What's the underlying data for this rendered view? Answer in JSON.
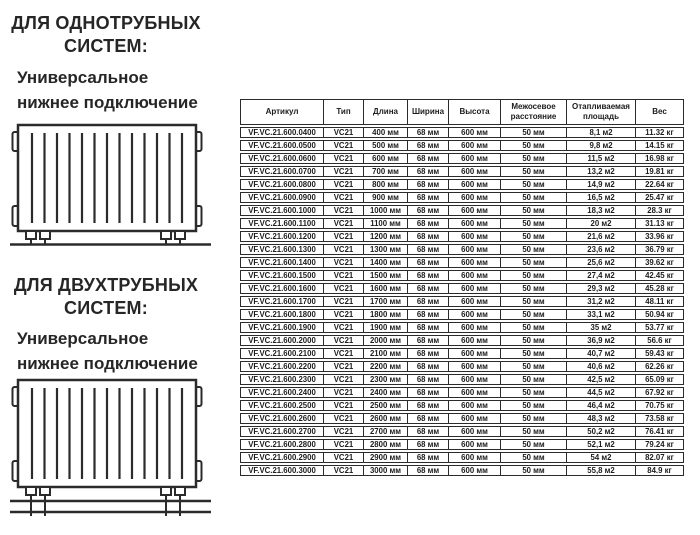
{
  "page": {
    "background": "#ffffff",
    "text_color": "#262626",
    "border_color": "#2b2b2b"
  },
  "left_panel": {
    "single_pipe": {
      "heading": "ДЛЯ ОДНОТРУБНЫХ\nСИСТЕМ:",
      "subheading": "Универсальное\nнижнее подключение",
      "icon": "single-pipe-radiator-diagram"
    },
    "two_pipe": {
      "heading": "ДЛЯ ДВУХТРУБНЫХ\nСИСТЕМ:",
      "subheading": "Универсальное\nнижнее подключение",
      "icon": "two-pipe-radiator-diagram"
    }
  },
  "spec_table": {
    "headers": [
      "Артикул",
      "Тип",
      "Длина",
      "Ширина",
      "Высота",
      "Межосевое расстояние",
      "Отапливаемая площадь",
      "Вес"
    ],
    "rows": [
      [
        "VF.VC.21.600.0400",
        "VC21",
        "400 мм",
        "68 мм",
        "600 мм",
        "50 мм",
        "8,1 м2",
        "11.32 кг"
      ],
      [
        "VF.VC.21.600.0500",
        "VC21",
        "500 мм",
        "68 мм",
        "600 мм",
        "50 мм",
        "9,8 м2",
        "14.15 кг"
      ],
      [
        "VF.VC.21.600.0600",
        "VC21",
        "600 мм",
        "68 мм",
        "600 мм",
        "50 мм",
        "11,5 м2",
        "16.98 кг"
      ],
      [
        "VF.VC.21.600.0700",
        "VC21",
        "700 мм",
        "68 мм",
        "600 мм",
        "50 мм",
        "13,2 м2",
        "19.81 кг"
      ],
      [
        "VF.VC.21.600.0800",
        "VC21",
        "800 мм",
        "68 мм",
        "600 мм",
        "50 мм",
        "14,9 м2",
        "22.64 кг"
      ],
      [
        "VF.VC.21.600.0900",
        "VC21",
        "900 мм",
        "68 мм",
        "600 мм",
        "50 мм",
        "16,5 м2",
        "25.47 кг"
      ],
      [
        "VF.VC.21.600.1000",
        "VC21",
        "1000 мм",
        "68 мм",
        "600 мм",
        "50 мм",
        "18,3 м2",
        "28.3 кг"
      ],
      [
        "VF.VC.21.600.1100",
        "VC21",
        "1100 мм",
        "68 мм",
        "600 мм",
        "50 мм",
        "20 м2",
        "31.13 кг"
      ],
      [
        "VF.VC.21.600.1200",
        "VC21",
        "1200 мм",
        "68 мм",
        "600 мм",
        "50 мм",
        "21,6 м2",
        "33.96 кг"
      ],
      [
        "VF.VC.21.600.1300",
        "VC21",
        "1300 мм",
        "68 мм",
        "600 мм",
        "50 мм",
        "23,6 м2",
        "36.79 кг"
      ],
      [
        "VF.VC.21.600.1400",
        "VC21",
        "1400 мм",
        "68 мм",
        "600 мм",
        "50 мм",
        "25,6 м2",
        "39.62 кг"
      ],
      [
        "VF.VC.21.600.1500",
        "VC21",
        "1500 мм",
        "68 мм",
        "600 мм",
        "50 мм",
        "27,4 м2",
        "42.45 кг"
      ],
      [
        "VF.VC.21.600.1600",
        "VC21",
        "1600 мм",
        "68 мм",
        "600 мм",
        "50 мм",
        "29,3 м2",
        "45.28 кг"
      ],
      [
        "VF.VC.21.600.1700",
        "VC21",
        "1700 мм",
        "68 мм",
        "600 мм",
        "50 мм",
        "31,2 м2",
        "48.11 кг"
      ],
      [
        "VF.VC.21.600.1800",
        "VC21",
        "1800 мм",
        "68 мм",
        "600 мм",
        "50 мм",
        "33,1 м2",
        "50.94 кг"
      ],
      [
        "VF.VC.21.600.1900",
        "VC21",
        "1900 мм",
        "68 мм",
        "600 мм",
        "50 мм",
        "35 м2",
        "53.77 кг"
      ],
      [
        "VF.VC.21.600.2000",
        "VC21",
        "2000 мм",
        "68 мм",
        "600 мм",
        "50 мм",
        "36,9 м2",
        "56.6 кг"
      ],
      [
        "VF.VC.21.600.2100",
        "VC21",
        "2100 мм",
        "68 мм",
        "600 мм",
        "50 мм",
        "40,7 м2",
        "59.43 кг"
      ],
      [
        "VF.VC.21.600.2200",
        "VC21",
        "2200 мм",
        "68 мм",
        "600 мм",
        "50 мм",
        "40,6 м2",
        "62.26 кг"
      ],
      [
        "VF.VC.21.600.2300",
        "VC21",
        "2300 мм",
        "68 мм",
        "600 мм",
        "50 мм",
        "42,5 м2",
        "65.09 кг"
      ],
      [
        "VF.VC.21.600.2400",
        "VC21",
        "2400 мм",
        "68 мм",
        "600 мм",
        "50 мм",
        "44,5 м2",
        "67.92 кг"
      ],
      [
        "VF.VC.21.600.2500",
        "VC21",
        "2500 мм",
        "68 мм",
        "600 мм",
        "50 мм",
        "46,4 м2",
        "70.75 кг"
      ],
      [
        "VF.VC.21.600.2600",
        "VC21",
        "2600 мм",
        "68 мм",
        "600 мм",
        "50 мм",
        "48,3 м2",
        "73.58 кг"
      ],
      [
        "VF.VC.21.600.2700",
        "VC21",
        "2700 мм",
        "68 мм",
        "600 мм",
        "50 мм",
        "50,2 м2",
        "76.41 кг"
      ],
      [
        "VF.VC.21.600.2800",
        "VC21",
        "2800 мм",
        "68 мм",
        "600 мм",
        "50 мм",
        "52,1 м2",
        "79.24 кг"
      ],
      [
        "VF.VC.21.600.2900",
        "VC21",
        "2900 мм",
        "68 мм",
        "600 мм",
        "50 мм",
        "54 м2",
        "82.07 кг"
      ],
      [
        "VF.VC.21.600.3000",
        "VC21",
        "3000 мм",
        "68 мм",
        "600 мм",
        "50 мм",
        "55,8 м2",
        "84.9 кг"
      ]
    ]
  }
}
